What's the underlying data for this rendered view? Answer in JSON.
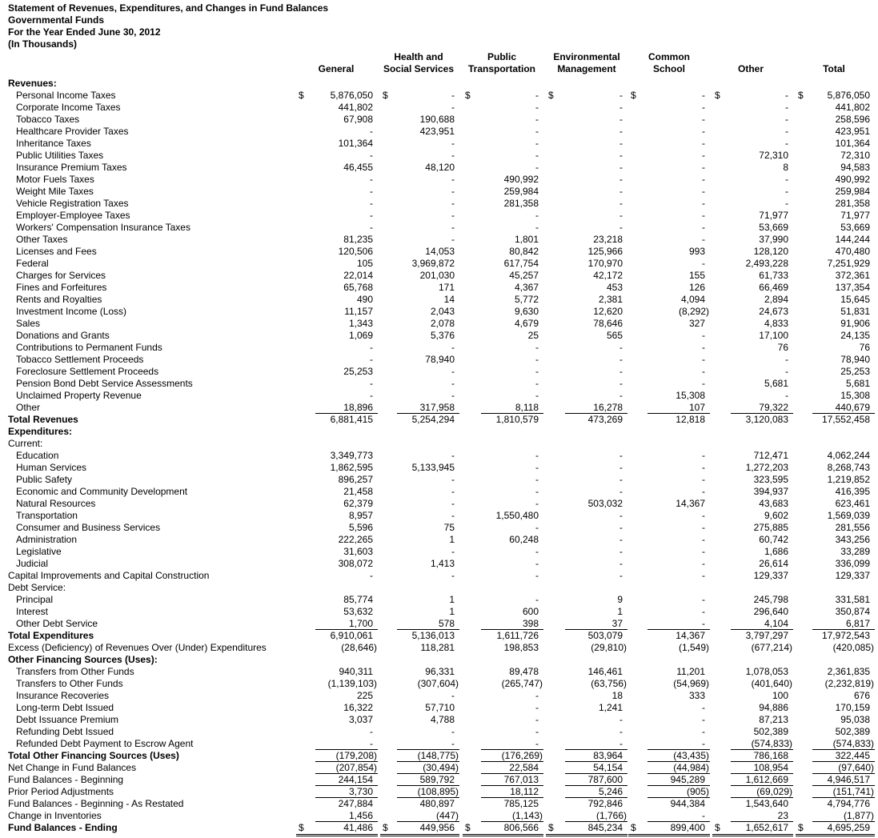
{
  "header": {
    "lines": [
      "Statement of Revenues, Expenditures, and Changes in Fund Balances",
      "Governmental Funds",
      "For the Year Ended June 30, 2012",
      "(In Thousands)"
    ]
  },
  "table": {
    "currency_symbol": "$",
    "columns": [
      [
        "General"
      ],
      [
        "Health and",
        "Social Services"
      ],
      [
        "Public",
        "Transportation"
      ],
      [
        "Environmental",
        "Management"
      ],
      [
        "Common",
        "School"
      ],
      [
        "Other"
      ],
      [
        "Total"
      ]
    ],
    "rows": [
      {
        "label": "Revenues:",
        "values": []
      },
      {
        "label": "Personal Income Taxes",
        "values": [
          "5,876,050",
          "-",
          "-",
          "-",
          "-",
          "-",
          "5,876,050"
        ]
      },
      {
        "label": "Corporate Income Taxes",
        "values": [
          "441,802",
          "-",
          "-",
          "-",
          "-",
          "-",
          "441,802"
        ]
      },
      {
        "label": "Tobacco Taxes",
        "values": [
          "67,908",
          "190,688",
          "-",
          "-",
          "-",
          "-",
          "258,596"
        ]
      },
      {
        "label": "Healthcare Provider Taxes",
        "values": [
          "-",
          "423,951",
          "-",
          "-",
          "-",
          "-",
          "423,951"
        ]
      },
      {
        "label": "Inheritance Taxes",
        "values": [
          "101,364",
          "-",
          "-",
          "-",
          "-",
          "-",
          "101,364"
        ]
      },
      {
        "label": "Public Utilities Taxes",
        "values": [
          "-",
          "-",
          "-",
          "-",
          "-",
          "72,310",
          "72,310"
        ]
      },
      {
        "label": "Insurance Premium Taxes",
        "values": [
          "46,455",
          "48,120",
          "-",
          "-",
          "-",
          "8",
          "94,583"
        ]
      },
      {
        "label": "Motor Fuels Taxes",
        "values": [
          "-",
          "-",
          "490,992",
          "-",
          "-",
          "-",
          "490,992"
        ]
      },
      {
        "label": "Weight Mile Taxes",
        "values": [
          "-",
          "-",
          "259,984",
          "-",
          "-",
          "-",
          "259,984"
        ]
      },
      {
        "label": "Vehicle Registration Taxes",
        "values": [
          "-",
          "-",
          "281,358",
          "-",
          "-",
          "-",
          "281,358"
        ]
      },
      {
        "label": "Employer-Employee Taxes",
        "values": [
          "-",
          "-",
          "-",
          "-",
          "-",
          "71,977",
          "71,977"
        ]
      },
      {
        "label": "Workers' Compensation Insurance Taxes",
        "values": [
          "-",
          "-",
          "-",
          "-",
          "-",
          "53,669",
          "53,669"
        ]
      },
      {
        "label": "Other Taxes",
        "values": [
          "81,235",
          "-",
          "1,801",
          "23,218",
          "-",
          "37,990",
          "144,244"
        ]
      },
      {
        "label": "Licenses and Fees",
        "values": [
          "120,506",
          "14,053",
          "80,842",
          "125,966",
          "993",
          "128,120",
          "470,480"
        ]
      },
      {
        "label": "Federal",
        "values": [
          "105",
          "3,969,872",
          "617,754",
          "170,970",
          "-",
          "2,493,228",
          "7,251,929"
        ]
      },
      {
        "label": "Charges for Services",
        "values": [
          "22,014",
          "201,030",
          "45,257",
          "42,172",
          "155",
          "61,733",
          "372,361"
        ]
      },
      {
        "label": "Fines and Forfeitures",
        "values": [
          "65,768",
          "171",
          "4,367",
          "453",
          "126",
          "66,469",
          "137,354"
        ]
      },
      {
        "label": "Rents and Royalties",
        "values": [
          "490",
          "14",
          "5,772",
          "2,381",
          "4,094",
          "2,894",
          "15,645"
        ]
      },
      {
        "label": "Investment Income (Loss)",
        "values": [
          "11,157",
          "2,043",
          "9,630",
          "12,620",
          "(8,292)",
          "24,673",
          "51,831"
        ]
      },
      {
        "label": "Sales",
        "values": [
          "1,343",
          "2,078",
          "4,679",
          "78,646",
          "327",
          "4,833",
          "91,906"
        ]
      },
      {
        "label": "Donations and Grants",
        "values": [
          "1,069",
          "5,376",
          "25",
          "565",
          "-",
          "17,100",
          "24,135"
        ]
      },
      {
        "label": "Contributions to Permanent Funds",
        "values": [
          "-",
          "-",
          "-",
          "-",
          "-",
          "76",
          "76"
        ]
      },
      {
        "label": "Tobacco Settlement Proceeds",
        "values": [
          "-",
          "78,940",
          "-",
          "-",
          "-",
          "-",
          "78,940"
        ]
      },
      {
        "label": "Foreclosure Settlement Proceeds",
        "values": [
          "25,253",
          "-",
          "-",
          "-",
          "-",
          "-",
          "25,253"
        ]
      },
      {
        "label": "Pension Bond Debt Service Assessments",
        "values": [
          "-",
          "-",
          "-",
          "-",
          "-",
          "5,681",
          "5,681"
        ]
      },
      {
        "label": "Unclaimed Property Revenue",
        "values": [
          "-",
          "-",
          "-",
          "-",
          "15,308",
          "-",
          "15,308"
        ]
      },
      {
        "label": "Other",
        "values": [
          "18,896",
          "317,958",
          "8,118",
          "16,278",
          "107",
          "79,322",
          "440,679"
        ]
      },
      {
        "label": "Total Revenues",
        "values": [
          "6,881,415",
          "5,254,294",
          "1,810,579",
          "473,269",
          "12,818",
          "3,120,083",
          "17,552,458"
        ]
      },
      {
        "label": "Expenditures:",
        "values": []
      },
      {
        "label": "Current:",
        "values": []
      },
      {
        "label": "Education",
        "values": [
          "3,349,773",
          "-",
          "-",
          "-",
          "-",
          "712,471",
          "4,062,244"
        ]
      },
      {
        "label": "Human Services",
        "values": [
          "1,862,595",
          "5,133,945",
          "-",
          "-",
          "-",
          "1,272,203",
          "8,268,743"
        ]
      },
      {
        "label": "Public Safety",
        "values": [
          "896,257",
          "-",
          "-",
          "-",
          "-",
          "323,595",
          "1,219,852"
        ]
      },
      {
        "label": "Economic and Community Development",
        "values": [
          "21,458",
          "-",
          "-",
          "-",
          "-",
          "394,937",
          "416,395"
        ]
      },
      {
        "label": "Natural Resources",
        "values": [
          "62,379",
          "-",
          "-",
          "503,032",
          "14,367",
          "43,683",
          "623,461"
        ]
      },
      {
        "label": "Transportation",
        "values": [
          "8,957",
          "-",
          "1,550,480",
          "-",
          "-",
          "9,602",
          "1,569,039"
        ]
      },
      {
        "label": "Consumer and Business Services",
        "values": [
          "5,596",
          "75",
          "-",
          "-",
          "-",
          "275,885",
          "281,556"
        ]
      },
      {
        "label": "Administration",
        "values": [
          "222,265",
          "1",
          "60,248",
          "-",
          "-",
          "60,742",
          "343,256"
        ]
      },
      {
        "label": "Legislative",
        "values": [
          "31,603",
          "-",
          "-",
          "-",
          "-",
          "1,686",
          "33,289"
        ]
      },
      {
        "label": "Judicial",
        "values": [
          "308,072",
          "1,413",
          "-",
          "-",
          "-",
          "26,614",
          "336,099"
        ]
      },
      {
        "label": "Capital Improvements and Capital Construction",
        "values": [
          "-",
          "-",
          "-",
          "-",
          "-",
          "129,337",
          "129,337"
        ]
      },
      {
        "label": "Debt Service:",
        "values": []
      },
      {
        "label": "Principal",
        "values": [
          "85,774",
          "1",
          "-",
          "9",
          "-",
          "245,798",
          "331,581"
        ]
      },
      {
        "label": "Interest",
        "values": [
          "53,632",
          "1",
          "600",
          "1",
          "-",
          "296,640",
          "350,874"
        ]
      },
      {
        "label": "Other Debt Service",
        "values": [
          "1,700",
          "578",
          "398",
          "37",
          "-",
          "4,104",
          "6,817"
        ]
      },
      {
        "label": "Total Expenditures",
        "values": [
          "6,910,061",
          "5,136,013",
          "1,611,726",
          "503,079",
          "14,367",
          "3,797,297",
          "17,972,543"
        ]
      },
      {
        "label": "Excess (Deficiency) of Revenues Over (Under) Expenditures",
        "values": [
          "(28,646)",
          "118,281",
          "198,853",
          "(29,810)",
          "(1,549)",
          "(677,214)",
          "(420,085)"
        ]
      },
      {
        "label": "Other Financing Sources (Uses):",
        "values": []
      },
      {
        "label": "Transfers from Other Funds",
        "values": [
          "940,311",
          "96,331",
          "89,478",
          "146,461",
          "11,201",
          "1,078,053",
          "2,361,835"
        ]
      },
      {
        "label": "Transfers to Other Funds",
        "values": [
          "(1,139,103)",
          "(307,604)",
          "(265,747)",
          "(63,756)",
          "(54,969)",
          "(401,640)",
          "(2,232,819)"
        ]
      },
      {
        "label": "Insurance Recoveries",
        "values": [
          "225",
          "-",
          "-",
          "18",
          "333",
          "100",
          "676"
        ]
      },
      {
        "label": "Long-term Debt Issued",
        "values": [
          "16,322",
          "57,710",
          "-",
          "1,241",
          "-",
          "94,886",
          "170,159"
        ]
      },
      {
        "label": "Debt Issuance Premium",
        "values": [
          "3,037",
          "4,788",
          "-",
          "-",
          "-",
          "87,213",
          "95,038"
        ]
      },
      {
        "label": "Refunding Debt Issued",
        "values": [
          "-",
          "-",
          "-",
          "-",
          "-",
          "502,389",
          "502,389"
        ]
      },
      {
        "label": "Refunded Debt Payment to Escrow Agent",
        "values": [
          "-",
          "-",
          "-",
          "-",
          "-",
          "(574,833)",
          "(574,833)"
        ]
      },
      {
        "label": "Total Other Financing Sources (Uses)",
        "values": [
          "(179,208)",
          "(148,775)",
          "(176,269)",
          "83,964",
          "(43,435)",
          "786,168",
          "322,445"
        ]
      },
      {
        "label": "Net Change in Fund Balances",
        "values": [
          "(207,854)",
          "(30,494)",
          "22,584",
          "54,154",
          "(44,984)",
          "108,954",
          "(97,640)"
        ]
      },
      {
        "label": "Fund Balances - Beginning",
        "values": [
          "244,154",
          "589,792",
          "767,013",
          "787,600",
          "945,289",
          "1,612,669",
          "4,946,517"
        ]
      },
      {
        "label": "Prior Period Adjustments",
        "values": [
          "3,730",
          "(108,895)",
          "18,112",
          "5,246",
          "(905)",
          "(69,029)",
          "(151,741)"
        ]
      },
      {
        "label": "Fund Balances - Beginning - As Restated",
        "values": [
          "247,884",
          "480,897",
          "785,125",
          "792,846",
          "944,384",
          "1,543,640",
          "4,794,776"
        ]
      },
      {
        "label": "Change in Inventories",
        "values": [
          "1,456",
          "(447)",
          "(1,143)",
          "(1,766)",
          "-",
          "23",
          "(1,877)"
        ]
      },
      {
        "label": "Fund Balances - Ending",
        "values": [
          "41,486",
          "449,956",
          "806,566",
          "845,234",
          "899,400",
          "1,652,617",
          "4,695,259"
        ]
      }
    ]
  }
}
